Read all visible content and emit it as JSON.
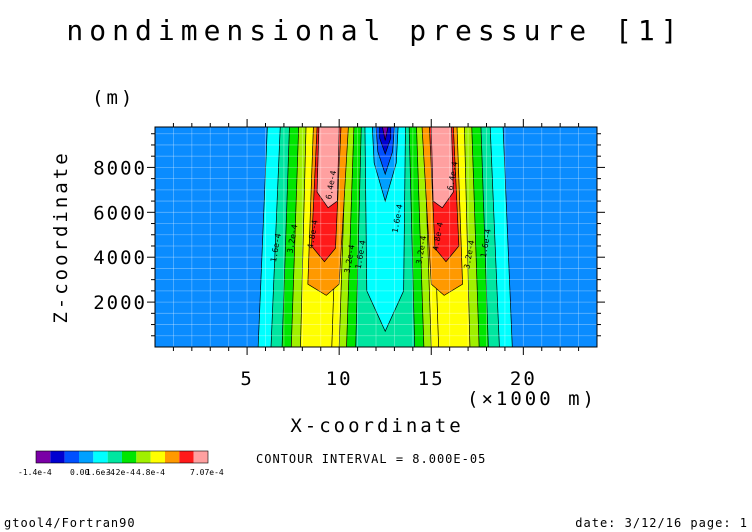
{
  "chart_data": {
    "type": "contour",
    "title": "nondimensional pressure [1]",
    "xlabel": "X-coordinate",
    "xunit": "(×1000 m)",
    "ylabel": "Z-coordinate",
    "yunit": "(m)",
    "xlim": [
      0,
      24
    ],
    "ylim": [
      0,
      9800
    ],
    "x_ticks": [
      5,
      10,
      15,
      20
    ],
    "y_ticks": [
      2000,
      4000,
      6000,
      8000
    ],
    "contour_interval_text": "CONTOUR INTERVAL = 8.000E-05",
    "colorbar": {
      "min_label": "-1.4e-4",
      "max_label": "7.07e-4",
      "tick_labels": [
        "0.00",
        "1.6e-4",
        "3.2e-4",
        "4.8e-4"
      ],
      "colors": [
        "#7a00a6",
        "#0000d0",
        "#0050ff",
        "#00a0ff",
        "#00ffff",
        "#00e6a0",
        "#00e600",
        "#a0f000",
        "#ffff00",
        "#ff9900",
        "#ff1a1a",
        "#ffa0a0"
      ]
    },
    "contour_labels": [
      {
        "text": "1.6e-4",
        "x": 6.7,
        "z": 4400
      },
      {
        "text": "3.2e-4",
        "x": 7.6,
        "z": 4800
      },
      {
        "text": "4.8e-4",
        "x": 8.7,
        "z": 5000
      },
      {
        "text": "6.4e-4",
        "x": 9.7,
        "z": 7200
      },
      {
        "text": "3.2e-4",
        "x": 10.7,
        "z": 3900
      },
      {
        "text": "1.6e-4",
        "x": 11.3,
        "z": 4100
      },
      {
        "text": "1.6e-4",
        "x": 13.3,
        "z": 5700
      },
      {
        "text": "3.2e-4",
        "x": 14.6,
        "z": 4300
      },
      {
        "text": "4.8e-4",
        "x": 15.5,
        "z": 4900
      },
      {
        "text": "6.4e-4",
        "x": 16.3,
        "z": 7600
      },
      {
        "text": "3.2e-4",
        "x": 17.2,
        "z": 4100
      },
      {
        "text": "1.6e-4",
        "x": 18.1,
        "z": 4600
      }
    ]
  },
  "footer": {
    "left": "gtool4/Fortran90",
    "right": "date: 3/12/16 page: 1"
  }
}
